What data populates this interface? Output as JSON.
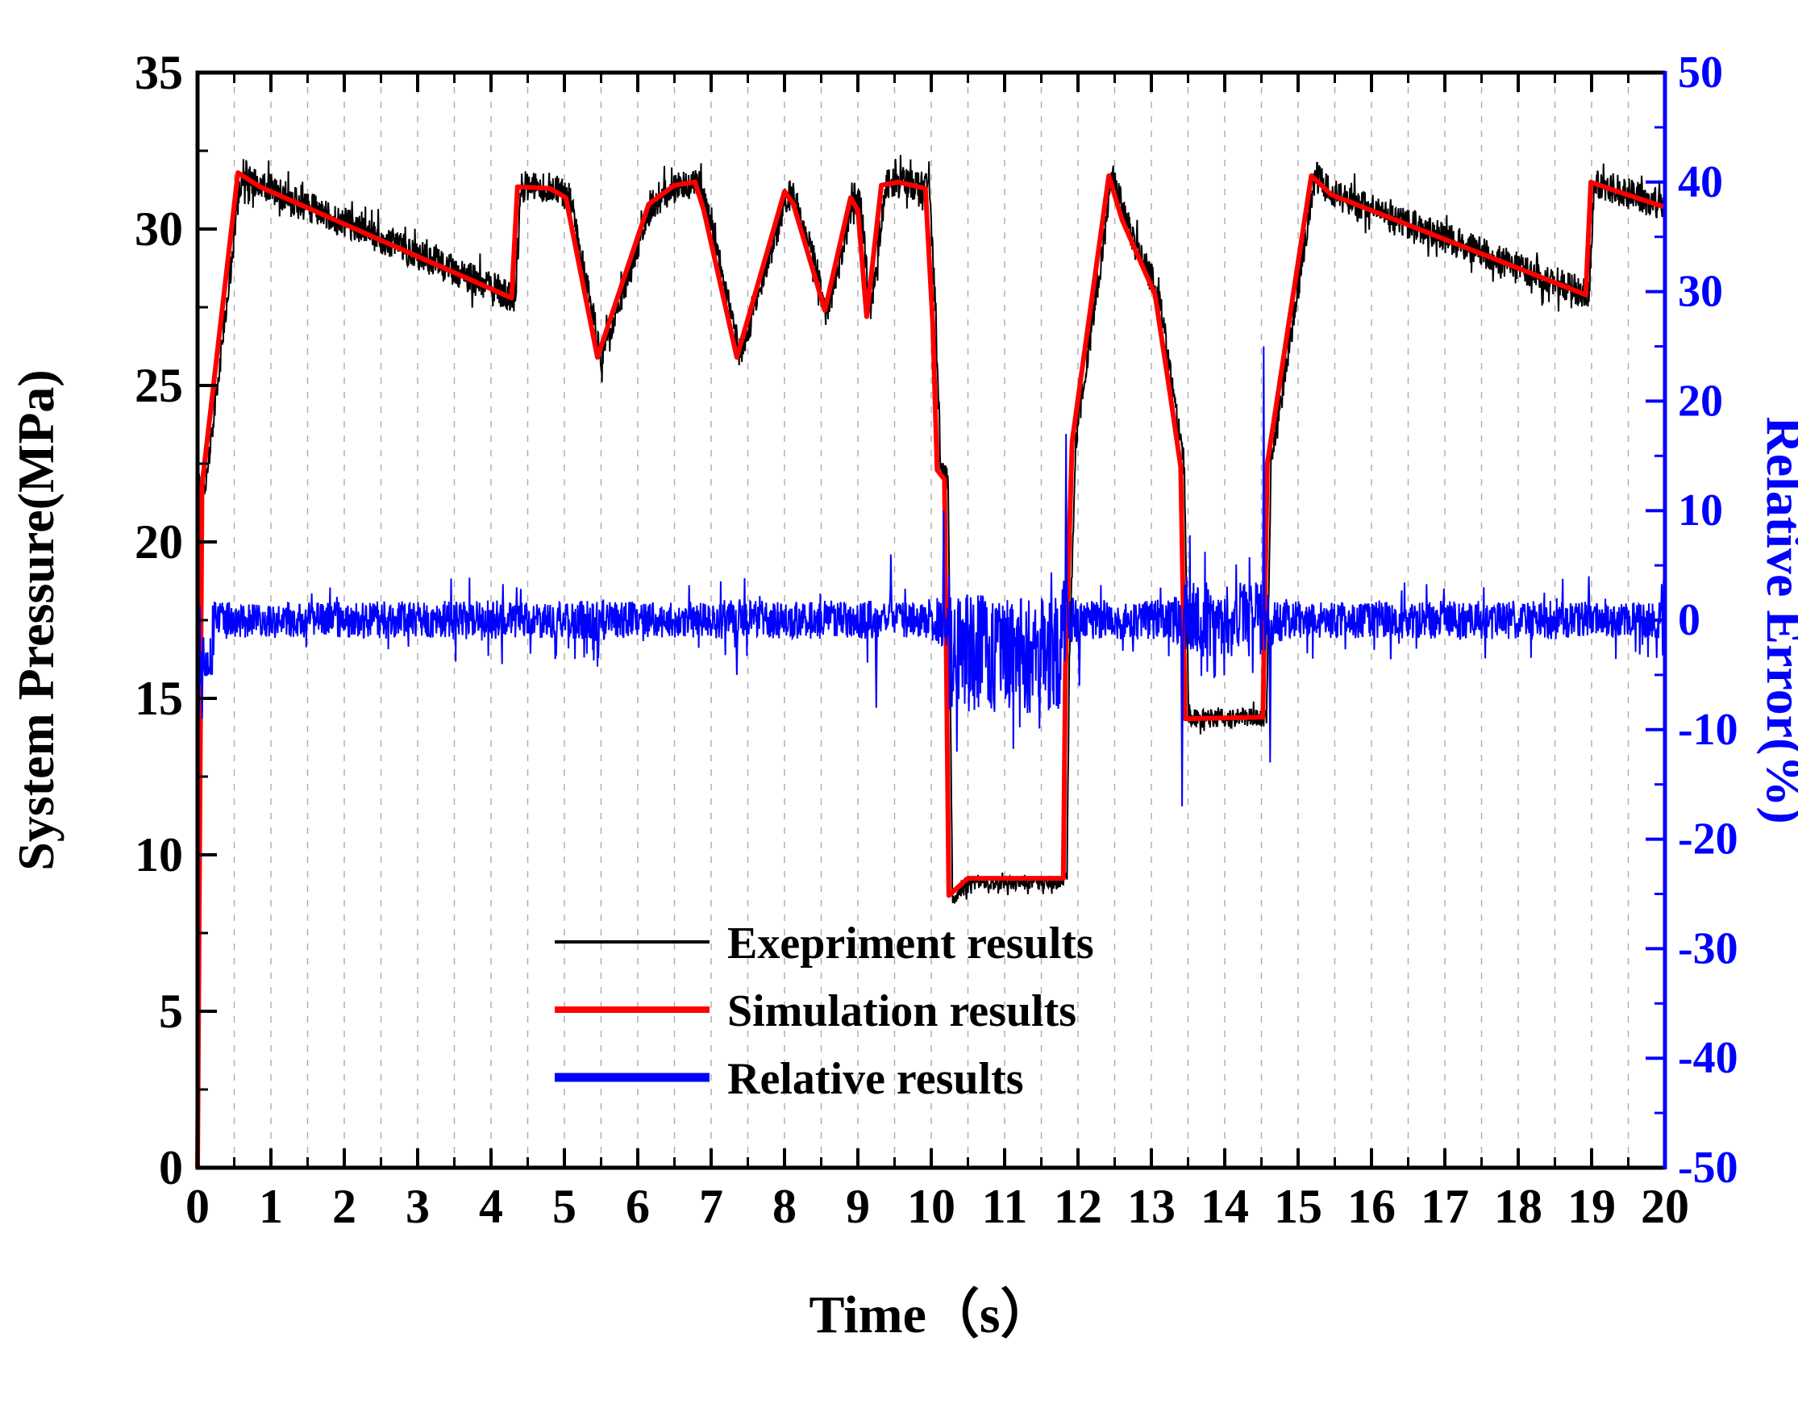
{
  "chart_data": {
    "type": "line",
    "title": "",
    "xlabel": "Time（s）",
    "ylabel_left": "System Pressure(MPa)",
    "ylabel_right": "Relative Error(%)",
    "x_range": [
      0,
      20
    ],
    "y_left_range": [
      0,
      35
    ],
    "y_right_range": [
      -50,
      50
    ],
    "x_ticks": [
      0,
      1,
      2,
      3,
      4,
      5,
      6,
      7,
      8,
      9,
      10,
      11,
      12,
      13,
      14,
      15,
      16,
      17,
      18,
      19,
      20
    ],
    "y_left_ticks": [
      0,
      5,
      10,
      15,
      20,
      25,
      30,
      35
    ],
    "y_right_ticks": [
      50,
      40,
      30,
      20,
      10,
      0,
      -10,
      -20,
      -30,
      -40,
      -50
    ],
    "grid": {
      "vertical_dashed": true,
      "spacing": 0.5,
      "color": "#ababab"
    },
    "legend": {
      "position": "inside-bottom-center"
    },
    "series": [
      {
        "name": "Exepriment results",
        "color": "#000000",
        "width": 2,
        "axis": "left",
        "derived": "simulation_plus_noise",
        "lag_s": 0.05,
        "noise_amp_mpa": 0.45
      },
      {
        "name": "Simulation results",
        "color": "#ff0000",
        "width": 6,
        "axis": "left",
        "keypoints": [
          [
            0.0,
            0.0
          ],
          [
            0.06,
            21.8
          ],
          [
            0.55,
            31.8
          ],
          [
            0.85,
            31.35
          ],
          [
            4.28,
            27.8
          ],
          [
            4.36,
            31.35
          ],
          [
            4.8,
            31.3
          ],
          [
            5.02,
            31.0
          ],
          [
            5.45,
            25.9
          ],
          [
            6.15,
            30.8
          ],
          [
            6.5,
            31.4
          ],
          [
            6.78,
            31.5
          ],
          [
            6.9,
            30.6
          ],
          [
            7.35,
            25.9
          ],
          [
            8.0,
            31.2
          ],
          [
            8.12,
            30.8
          ],
          [
            8.55,
            27.4
          ],
          [
            8.9,
            31.0
          ],
          [
            9.0,
            30.6
          ],
          [
            9.12,
            27.2
          ],
          [
            9.32,
            31.4
          ],
          [
            9.55,
            31.5
          ],
          [
            9.92,
            31.3
          ],
          [
            10.02,
            27.0
          ],
          [
            10.08,
            22.3
          ],
          [
            10.18,
            22.0
          ],
          [
            10.24,
            8.7
          ],
          [
            10.5,
            9.25
          ],
          [
            11.8,
            9.25
          ],
          [
            11.83,
            16.0
          ],
          [
            11.92,
            23.2
          ],
          [
            12.42,
            31.7
          ],
          [
            12.6,
            30.3
          ],
          [
            13.05,
            27.9
          ],
          [
            13.25,
            24.8
          ],
          [
            13.4,
            22.4
          ],
          [
            13.46,
            14.35
          ],
          [
            14.52,
            14.4
          ],
          [
            14.58,
            22.5
          ],
          [
            15.18,
            31.7
          ],
          [
            15.45,
            31.1
          ],
          [
            18.92,
            27.9
          ],
          [
            18.99,
            31.5
          ],
          [
            19.35,
            31.2
          ],
          [
            20.0,
            30.7
          ]
        ]
      },
      {
        "name": "Relative results",
        "color": "#0000ff",
        "width": 2,
        "axis": "right",
        "definition": "(experiment - simulation) / simulation x 100",
        "noise_amp_pct": 1.7,
        "bias_segments": [
          [
            0.0,
            0.2,
            -3.0
          ],
          [
            10.25,
            11.78,
            -3.0
          ]
        ],
        "spikes": [
          [
            0.06,
            -9
          ],
          [
            4.35,
            3
          ],
          [
            7.35,
            -5
          ],
          [
            9.25,
            -8
          ],
          [
            9.45,
            6
          ],
          [
            10.17,
            10
          ],
          [
            10.35,
            -12
          ],
          [
            11.84,
            17
          ],
          [
            12.02,
            -6
          ],
          [
            13.42,
            -17
          ],
          [
            14.53,
            25
          ],
          [
            14.62,
            -13
          ],
          [
            18.96,
            4
          ]
        ]
      }
    ]
  },
  "colors": {
    "background": "#ffffff",
    "left_axis": "#000000",
    "right_axis": "#0000ff",
    "experiment": "#000000",
    "simulation": "#ff0000",
    "relative": "#0000ff",
    "grid": "#ababab"
  }
}
